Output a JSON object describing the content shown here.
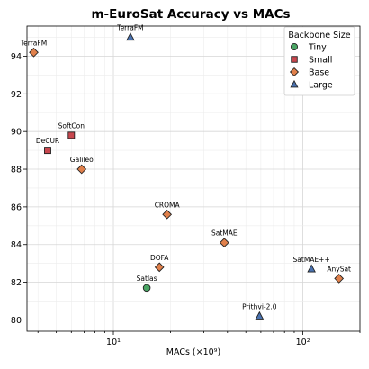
{
  "chart_data": {
    "type": "scatter",
    "title": "m-EuroSat Accuracy vs MACs",
    "xlabel": "MACs (×10⁹)",
    "ylabel": "",
    "xscale": "log",
    "xlim": [
      3.5,
      200
    ],
    "ylim": [
      79.4,
      95.6
    ],
    "x_ticks": [
      10,
      100
    ],
    "x_tick_labels": [
      "10¹",
      "10²"
    ],
    "y_ticks": [
      80,
      82,
      84,
      86,
      88,
      90,
      92,
      94
    ],
    "grid": true,
    "legend": {
      "title": "Backbone Size",
      "position": "top-right"
    },
    "series": [
      {
        "name": "Tiny",
        "marker": "circle",
        "color": "#4aa564",
        "points": [
          {
            "label": "Satlas",
            "x": 15,
            "y": 81.7
          }
        ]
      },
      {
        "name": "Small",
        "marker": "square",
        "color": "#c8474e",
        "points": [
          {
            "label": "SoftCon",
            "x": 6.0,
            "y": 89.8
          },
          {
            "label": "DeCUR",
            "x": 4.5,
            "y": 89.0
          }
        ]
      },
      {
        "name": "Base",
        "marker": "diamond",
        "color": "#e0804b",
        "points": [
          {
            "label": "TerraFM",
            "x": 3.8,
            "y": 94.2
          },
          {
            "label": "Galileo",
            "x": 6.8,
            "y": 88.0
          },
          {
            "label": "CROMA",
            "x": 19.2,
            "y": 85.6
          },
          {
            "label": "SatMAE",
            "x": 38.5,
            "y": 84.1
          },
          {
            "label": "DOFA",
            "x": 17.5,
            "y": 82.8
          },
          {
            "label": "AnySat",
            "x": 155,
            "y": 82.2
          }
        ]
      },
      {
        "name": "Large",
        "marker": "triangle",
        "color": "#4a72b0",
        "points": [
          {
            "label": "TerraFM",
            "x": 12.3,
            "y": 95.0
          },
          {
            "label": "SatMAE++",
            "x": 111,
            "y": 82.7
          },
          {
            "label": "Prithvi-2.0",
            "x": 59,
            "y": 80.2
          }
        ]
      }
    ]
  }
}
